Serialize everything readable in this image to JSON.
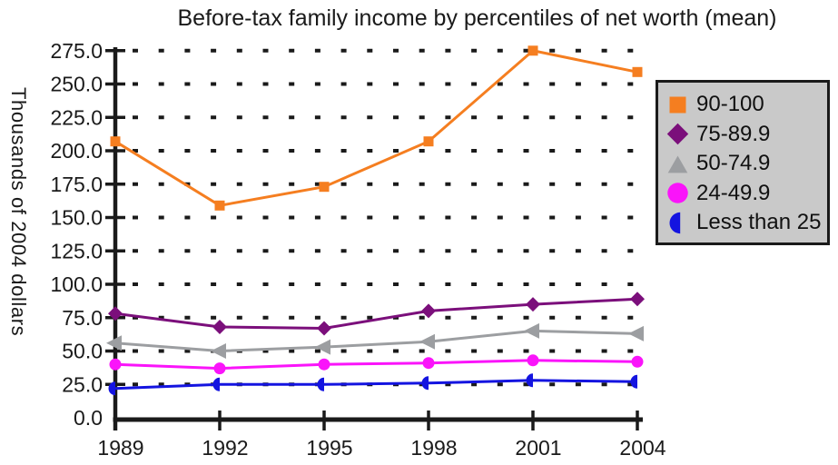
{
  "chart_data": {
    "type": "line",
    "title": "Before-tax family income by percentiles of net worth (mean)",
    "xlabel": "",
    "ylabel": "Thousands of 2004 dollars",
    "x": [
      "1989",
      "1992",
      "1995",
      "1998",
      "2001",
      "2004"
    ],
    "ylim": [
      0,
      275
    ],
    "ytick_step": 25,
    "ytick_labels": [
      "0.0",
      "25.0",
      "50.0",
      "75.0",
      "100.0",
      "125.0",
      "150.0",
      "175.0",
      "200.0",
      "225.0",
      "250.0",
      "275.0"
    ],
    "grid": "dotted-horizontal",
    "legend_position": "right",
    "legend_bg": "#C9C9C9",
    "axis_color": "#1a1a1a",
    "series": [
      {
        "name": "90-100",
        "color": "#F57E20",
        "legend_marker": "square",
        "marker": "square",
        "values": [
          207,
          159,
          173,
          207,
          275,
          259
        ]
      },
      {
        "name": "75-89.9",
        "color": "#7B0F7B",
        "legend_marker": "diamond",
        "marker": "diamond",
        "values": [
          78,
          68,
          67,
          80,
          85,
          89
        ]
      },
      {
        "name": "50-74.9",
        "color": "#9C9EA1",
        "legend_marker": "triangle-up",
        "marker": "triangle-left",
        "values": [
          56,
          50,
          53,
          57,
          65,
          63
        ]
      },
      {
        "name": "24-49.9",
        "color": "#FA14FA",
        "legend_marker": "circle",
        "marker": "circle",
        "values": [
          40,
          37,
          40,
          41,
          43,
          42
        ]
      },
      {
        "name": "Less than 25",
        "color": "#1414E0",
        "legend_marker": "half-circle-left",
        "marker": "half-circle-left",
        "values": [
          22,
          25,
          25,
          26,
          28,
          27
        ]
      }
    ]
  }
}
